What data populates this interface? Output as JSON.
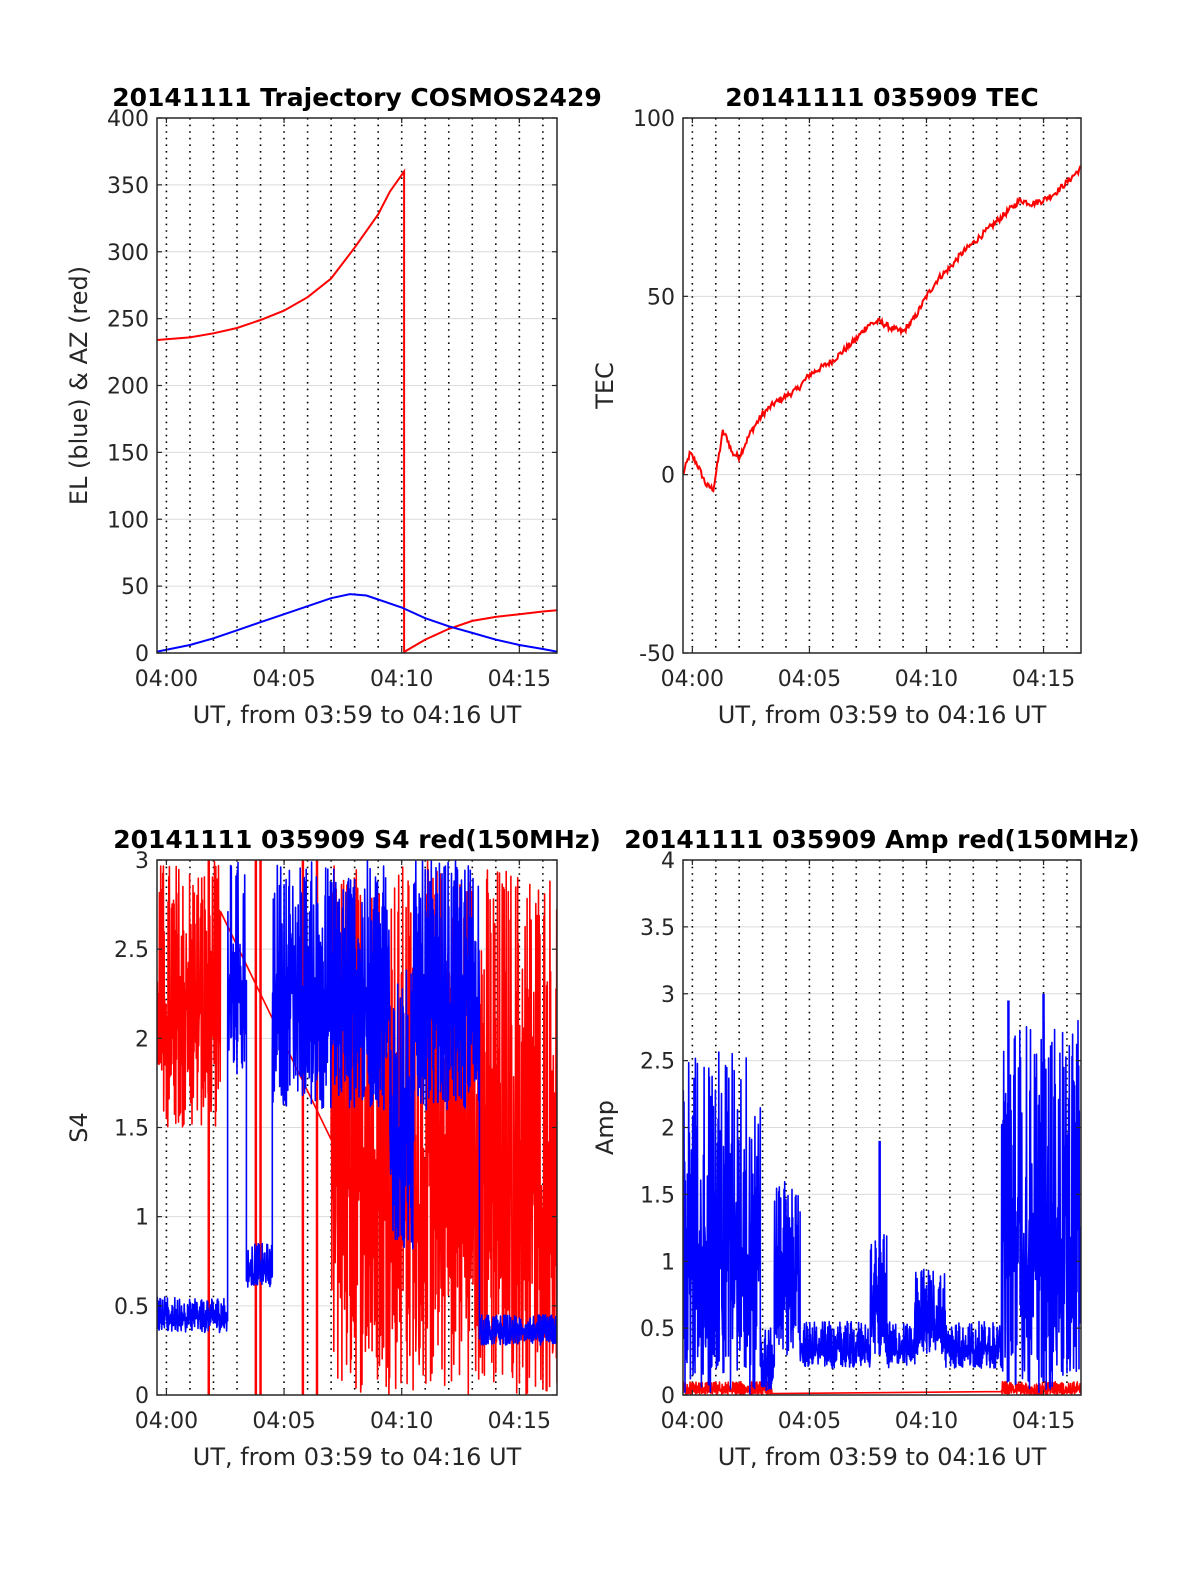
{
  "chart_data": [
    {
      "id": "traj",
      "type": "line",
      "title": "20141111 Trajectory COSMOS2429",
      "xlabel": "UT, from 03:59 to 04:16 UT",
      "ylabel": "EL (blue) & AZ (red)",
      "xlim": [
        -0.4,
        16.6
      ],
      "ylim": [
        0,
        400
      ],
      "x_ticks": [
        0,
        5,
        10,
        15
      ],
      "x_tick_labels": [
        "04:00",
        "04:05",
        "04:10",
        "04:15"
      ],
      "y_ticks": [
        0,
        50,
        100,
        150,
        200,
        250,
        300,
        350,
        400
      ],
      "y_tick_labels": [
        "0",
        "50",
        "100",
        "150",
        "200",
        "250",
        "300",
        "350",
        "400"
      ],
      "grid": true,
      "minute_lines": true,
      "series": [
        {
          "color": "#ff0000",
          "x": [
            -0.4,
            1,
            2,
            3,
            4,
            5,
            6,
            7,
            8,
            9,
            9.5,
            10.1,
            10.1,
            10.12,
            11,
            12,
            13,
            14,
            15,
            16,
            16.6
          ],
          "y": [
            234,
            236,
            239,
            243,
            249,
            256,
            266,
            280,
            303,
            328,
            345,
            360,
            0,
            1,
            10,
            18,
            24,
            27,
            29,
            31,
            32
          ]
        },
        {
          "color": "#0000ff",
          "x": [
            -0.4,
            1,
            2,
            3,
            4,
            5,
            6,
            7,
            7.8,
            8.5,
            9,
            10,
            11,
            12,
            13,
            14,
            15,
            16,
            16.6
          ],
          "y": [
            1,
            6,
            11,
            17,
            23,
            29,
            35,
            41,
            44,
            43,
            40,
            34,
            26,
            20,
            15,
            10,
            6,
            3,
            1
          ]
        }
      ]
    },
    {
      "id": "tec",
      "type": "line",
      "title": "20141111 035909 TEC",
      "xlabel": "UT, from 03:59 to 04:16 UT",
      "ylabel": "TEC",
      "xlim": [
        -0.4,
        16.6
      ],
      "ylim": [
        -50,
        100
      ],
      "x_ticks": [
        0,
        5,
        10,
        15
      ],
      "x_tick_labels": [
        "04:00",
        "04:05",
        "04:10",
        "04:15"
      ],
      "y_ticks": [
        -50,
        0,
        50,
        100
      ],
      "y_tick_labels": [
        "-50",
        "0",
        "50",
        "100"
      ],
      "grid": true,
      "minute_lines": true,
      "series": [
        {
          "color": "#ff0000",
          "x": [
            -0.4,
            -0.1,
            0.2,
            0.6,
            0.9,
            1.1,
            1.3,
            1.5,
            1.7,
            2.0,
            2.5,
            3.0,
            3.5,
            4.0,
            4.5,
            5.0,
            5.5,
            6.0,
            6.5,
            7.0,
            7.5,
            8.0,
            8.5,
            9.0,
            9.5,
            10.0,
            10.5,
            11.0,
            11.5,
            12.0,
            12.5,
            13.0,
            13.5,
            14.0,
            14.5,
            15.0,
            15.5,
            16.0,
            16.6
          ],
          "y": [
            0,
            6,
            3,
            -3,
            -4,
            4,
            12,
            10,
            6,
            5,
            12,
            17,
            20,
            22,
            24,
            28,
            30,
            32,
            35,
            38,
            42,
            43,
            41,
            40,
            44,
            50,
            55,
            58,
            62,
            65,
            68,
            71,
            74,
            77,
            76,
            77,
            79,
            82,
            86
          ]
        }
      ]
    },
    {
      "id": "s4",
      "type": "line",
      "title": "20141111 035909 S4 red(150MHz)",
      "xlabel": "UT, from 03:59 to 04:16 UT",
      "ylabel": "S4",
      "xlim": [
        -0.4,
        16.6
      ],
      "ylim": [
        0,
        3
      ],
      "x_ticks": [
        0,
        5,
        10,
        15
      ],
      "x_tick_labels": [
        "04:00",
        "04:05",
        "04:10",
        "04:15"
      ],
      "y_ticks": [
        0,
        0.5,
        1,
        1.5,
        2,
        2.5,
        3
      ],
      "y_tick_labels": [
        "0",
        "0.5",
        "1",
        "1.5",
        "2",
        "2.5",
        "3"
      ],
      "grid": true,
      "minute_lines": true,
      "series": [
        {
          "color": "#ff0000",
          "noise": true,
          "segments": [
            {
              "x0": -0.4,
              "x1": 2.3,
              "lo": 1.5,
              "hi": 3.0
            },
            {
              "x0": 7.0,
              "x1": 16.6,
              "lo": 0.0,
              "hi": 3.0
            }
          ],
          "spikes": [
            {
              "x": 1.8,
              "lo": 0,
              "hi": 3.0
            },
            {
              "x": 3.8,
              "lo": 0,
              "hi": 3.0
            },
            {
              "x": 4.0,
              "lo": 0,
              "hi": 3.0
            },
            {
              "x": 5.8,
              "lo": 0,
              "hi": 3.0
            },
            {
              "x": 6.4,
              "lo": 0,
              "hi": 3.0
            }
          ]
        },
        {
          "color": "#0000ff",
          "noise": true,
          "segments": [
            {
              "x0": -0.4,
              "x1": 2.6,
              "lo": 0.35,
              "hi": 0.55
            },
            {
              "x0": 2.6,
              "x1": 3.4,
              "lo": 1.8,
              "hi": 3.0
            },
            {
              "x0": 3.4,
              "x1": 4.5,
              "lo": 0.6,
              "hi": 0.85
            },
            {
              "x0": 4.5,
              "x1": 9.5,
              "lo": 1.6,
              "hi": 3.0
            },
            {
              "x0": 9.5,
              "x1": 10.5,
              "lo": 0.8,
              "hi": 2.4
            },
            {
              "x0": 10.5,
              "x1": 13.3,
              "lo": 1.6,
              "hi": 3.0
            },
            {
              "x0": 13.3,
              "x1": 16.6,
              "lo": 0.28,
              "hi": 0.45
            }
          ]
        }
      ]
    },
    {
      "id": "amp",
      "type": "line",
      "title": "20141111 035909 Amp red(150MHz)",
      "xlabel": "UT, from 03:59 to 04:16 UT",
      "ylabel": "Amp",
      "xlim": [
        -0.4,
        16.6
      ],
      "ylim": [
        0,
        4
      ],
      "x_ticks": [
        0,
        5,
        10,
        15
      ],
      "x_tick_labels": [
        "04:00",
        "04:05",
        "04:10",
        "04:15"
      ],
      "y_ticks": [
        0,
        0.5,
        1,
        1.5,
        2,
        2.5,
        3,
        3.5,
        4
      ],
      "y_tick_labels": [
        "0",
        "0.5",
        "1",
        "1.5",
        "2",
        "2.5",
        "3",
        "3.5",
        "4"
      ],
      "grid": true,
      "minute_lines": true,
      "series": [
        {
          "color": "#ff0000",
          "noise": true,
          "segments": [
            {
              "x0": -0.4,
              "x1": 3.4,
              "lo": 0.0,
              "hi": 0.1
            },
            {
              "x0": 13.2,
              "x1": 16.6,
              "lo": 0.0,
              "hi": 0.1
            }
          ]
        },
        {
          "color": "#0000ff",
          "noise": true,
          "segments": [
            {
              "x0": -0.4,
              "x1": 2.9,
              "lo": 0.0,
              "hi": 2.6
            },
            {
              "x0": 2.9,
              "x1": 3.5,
              "lo": 0.0,
              "hi": 0.5
            },
            {
              "x0": 3.5,
              "x1": 4.6,
              "lo": 0.3,
              "hi": 1.6
            },
            {
              "x0": 4.6,
              "x1": 7.6,
              "lo": 0.2,
              "hi": 0.55
            },
            {
              "x0": 7.6,
              "x1": 8.3,
              "lo": 0.3,
              "hi": 1.2
            },
            {
              "x0": 8.3,
              "x1": 9.5,
              "lo": 0.2,
              "hi": 0.55
            },
            {
              "x0": 9.5,
              "x1": 10.8,
              "lo": 0.3,
              "hi": 0.95
            },
            {
              "x0": 10.8,
              "x1": 13.2,
              "lo": 0.2,
              "hi": 0.55
            },
            {
              "x0": 13.2,
              "x1": 16.6,
              "lo": 0.0,
              "hi": 2.8
            }
          ],
          "spikes": [
            {
              "x": 8.0,
              "lo": 0.3,
              "hi": 1.9
            },
            {
              "x": 13.5,
              "lo": 0.1,
              "hi": 2.95
            },
            {
              "x": 15.0,
              "lo": 0.1,
              "hi": 3.0
            }
          ]
        }
      ]
    }
  ]
}
